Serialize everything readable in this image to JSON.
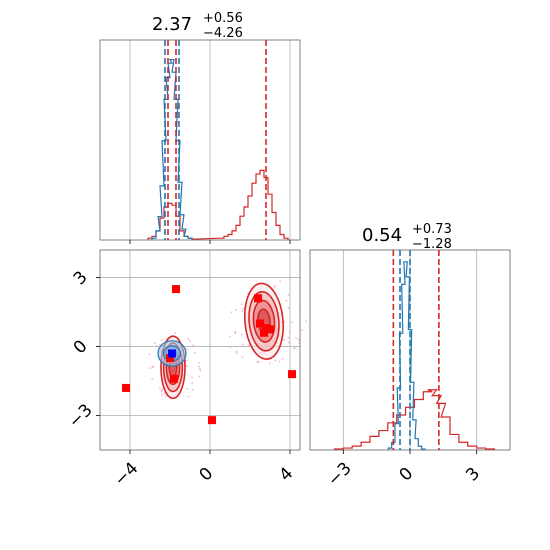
{
  "chart_data": {
    "type": "corner",
    "colors": {
      "primary": "#d62728",
      "secondary": "#1f77b4",
      "marker_blue": "#0000ff",
      "scatter_pink": "#f5a0c8",
      "grid": "#b0b0b0"
    },
    "panels": [
      {
        "id": "hist-param-1",
        "type": "histogram",
        "title": {
          "median": "2.37",
          "plus": "+0.56",
          "minus": "−4.26"
        },
        "x_range": [
          -5.5,
          4.5
        ],
        "xticks": [
          -4,
          0,
          4
        ],
        "vlines": [
          {
            "x": -2.1,
            "color": "#d62728"
          },
          {
            "x": -1.7,
            "color": "#d62728"
          },
          {
            "x": 2.8,
            "color": "#d62728"
          },
          {
            "x": -2.25,
            "color": "#1f77b4"
          },
          {
            "x": -1.55,
            "color": "#1f77b4"
          }
        ],
        "series": [
          {
            "name": "",
            "color": "#d62728",
            "x": [
              -3.0,
              -2.8,
              -2.6,
              -2.4,
              -2.2,
              -2.0,
              -1.8,
              -1.6,
              -1.4,
              -1.2,
              -1.0,
              -0.8,
              0.6,
              0.8,
              1.0,
              1.2,
              1.4,
              1.6,
              1.8,
              2.0,
              2.2,
              2.4,
              2.6,
              2.8,
              3.0,
              3.2,
              3.4,
              3.6,
              3.8
            ],
            "y": [
              0.01,
              0.02,
              0.05,
              0.12,
              0.18,
              0.2,
              0.19,
              0.13,
              0.05,
              0.02,
              0.01,
              0.005,
              0.01,
              0.02,
              0.03,
              0.05,
              0.08,
              0.13,
              0.18,
              0.24,
              0.31,
              0.36,
              0.38,
              0.34,
              0.25,
              0.15,
              0.08,
              0.03,
              0.01
            ]
          },
          {
            "name": "",
            "color": "#1f77b4",
            "x": [
              -2.8,
              -2.6,
              -2.5,
              -2.4,
              -2.3,
              -2.2,
              -2.1,
              -2.0,
              -1.9,
              -1.8,
              -1.7,
              -1.6,
              -1.5,
              -1.4,
              -1.3,
              -1.2,
              -1.0
            ],
            "y": [
              0.01,
              0.05,
              0.13,
              0.3,
              0.55,
              0.78,
              0.9,
              0.98,
              1.0,
              0.93,
              0.78,
              0.55,
              0.32,
              0.14,
              0.06,
              0.02,
              0.01
            ]
          }
        ]
      },
      {
        "id": "hist-param-2",
        "type": "histogram",
        "title": {
          "median": "0.54",
          "plus": "+0.73",
          "minus": "−1.28"
        },
        "x_range": [
          -4.5,
          4.5
        ],
        "xticks": [
          -3,
          0,
          3
        ],
        "vlines": [
          {
            "x": -0.75,
            "color": "#d62728"
          },
          {
            "x": 1.3,
            "color": "#d62728"
          },
          {
            "x": -0.45,
            "color": "#1f77b4"
          },
          {
            "x": 0.0,
            "color": "#1f77b4"
          }
        ],
        "series": [
          {
            "name": "",
            "color": "#d62728",
            "x": [
              -3.2,
              -2.8,
              -2.4,
              -2.0,
              -1.6,
              -1.2,
              -0.8,
              -0.4,
              0.0,
              0.4,
              0.8,
              1.0,
              1.2,
              1.4,
              1.6,
              2.0,
              2.4,
              2.8,
              3.2,
              3.6
            ],
            "y": [
              0.005,
              0.01,
              0.02,
              0.04,
              0.07,
              0.1,
              0.14,
              0.18,
              0.22,
              0.26,
              0.3,
              0.31,
              0.28,
              0.24,
              0.17,
              0.08,
              0.04,
              0.02,
              0.01,
              0.005
            ]
          },
          {
            "name": "",
            "color": "#1f77b4",
            "x": [
              -0.9,
              -0.75,
              -0.6,
              -0.5,
              -0.4,
              -0.3,
              -0.2,
              -0.1,
              0.0,
              0.1,
              0.2,
              0.3,
              0.45,
              0.6
            ],
            "y": [
              0.01,
              0.04,
              0.14,
              0.33,
              0.62,
              0.88,
              1.0,
              0.92,
              0.64,
              0.36,
              0.16,
              0.06,
              0.02,
              0.005
            ]
          }
        ]
      },
      {
        "id": "contour-2d",
        "type": "scatter-contour",
        "x_range": [
          -5.5,
          4.5
        ],
        "y_range": [
          -4.5,
          4.2
        ],
        "xticks": [
          -4,
          0,
          4
        ],
        "yticks": [
          3,
          0,
          -3
        ],
        "red_squares": [
          {
            "x": -1.7,
            "y": 2.5
          },
          {
            "x": 2.4,
            "y": 2.1
          },
          {
            "x": 2.5,
            "y": 1.0
          },
          {
            "x": 2.8,
            "y": 0.8
          },
          {
            "x": 3.0,
            "y": 0.75
          },
          {
            "x": 2.7,
            "y": 0.6
          },
          {
            "x": -4.2,
            "y": -1.8
          },
          {
            "x": -1.8,
            "y": -1.4
          },
          {
            "x": 4.1,
            "y": -1.2
          },
          {
            "x": 0.1,
            "y": -3.2
          },
          {
            "x": -2.0,
            "y": -0.5
          }
        ],
        "blue_squares": [
          {
            "x": -1.9,
            "y": -0.3
          }
        ],
        "blobs": [
          {
            "cx": 2.7,
            "cy": 1.1,
            "rx": 1.9,
            "ry": 3.3,
            "rot": -5
          },
          {
            "cx": -1.85,
            "cy": -0.9,
            "rx": 1.2,
            "ry": 2.7,
            "rot": 0
          }
        ],
        "blue_blob": {
          "cx": -1.9,
          "cy": -0.3,
          "rx": 0.7,
          "ry": 0.55,
          "rot": 0
        }
      }
    ]
  }
}
